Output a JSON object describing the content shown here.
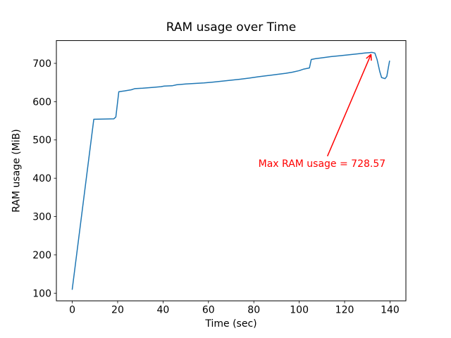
{
  "chart_data": {
    "type": "line",
    "title": "RAM usage over Time",
    "xlabel": "Time (sec)",
    "ylabel": "RAM usage (MiB)",
    "xlim": [
      -7,
      147
    ],
    "ylim": [
      80,
      759.5
    ],
    "x_ticks": [
      0,
      20,
      40,
      60,
      80,
      100,
      120,
      140
    ],
    "y_ticks": [
      100,
      200,
      300,
      400,
      500,
      600,
      700
    ],
    "grid": false,
    "legend": null,
    "line_color": "#1f77b4",
    "axis_color": "#000000",
    "series": [
      {
        "name": "RAM usage",
        "points": [
          [
            0,
            110
          ],
          [
            9.5,
            554
          ],
          [
            18.3,
            555
          ],
          [
            19.2,
            560
          ],
          [
            20.5,
            626
          ],
          [
            23,
            628
          ],
          [
            26,
            631
          ],
          [
            27.5,
            634
          ],
          [
            31,
            635
          ],
          [
            35,
            637
          ],
          [
            39,
            639
          ],
          [
            40.5,
            640.5
          ],
          [
            44,
            641.5
          ],
          [
            46,
            644
          ],
          [
            50,
            646
          ],
          [
            54,
            647.5
          ],
          [
            58,
            649
          ],
          [
            62,
            651
          ],
          [
            66,
            653.5
          ],
          [
            70,
            656
          ],
          [
            74,
            658.5
          ],
          [
            78,
            661.5
          ],
          [
            82,
            665
          ],
          [
            86,
            668
          ],
          [
            90,
            671
          ],
          [
            94,
            674
          ],
          [
            97,
            677
          ],
          [
            100,
            681
          ],
          [
            102,
            685
          ],
          [
            104.5,
            688
          ],
          [
            105.3,
            710
          ],
          [
            107,
            712
          ],
          [
            110,
            714.5
          ],
          [
            114,
            717.5
          ],
          [
            118,
            720
          ],
          [
            122,
            722.5
          ],
          [
            126,
            725
          ],
          [
            129,
            727
          ],
          [
            131,
            728
          ],
          [
            132,
            728.57
          ],
          [
            133.3,
            727
          ],
          [
            134.3,
            710
          ],
          [
            135.5,
            678
          ],
          [
            136.3,
            663
          ],
          [
            137.8,
            660
          ],
          [
            138.6,
            666
          ],
          [
            139.3,
            690
          ],
          [
            139.8,
            706
          ]
        ]
      }
    ],
    "annotation": {
      "text": "Max RAM usage = 728.57",
      "color": "#ff0000",
      "xy": [
        132,
        728.57
      ],
      "xytext": [
        82,
        430
      ]
    }
  }
}
